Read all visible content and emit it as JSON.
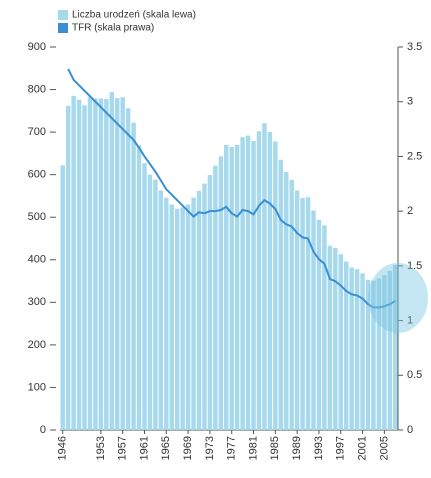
{
  "chart_data": {
    "type": "bar",
    "categories": [
      "1946",
      null,
      null,
      null,
      null,
      null,
      null,
      "1953",
      null,
      null,
      null,
      "1957",
      null,
      null,
      null,
      "1961",
      null,
      null,
      null,
      "1965",
      null,
      null,
      null,
      "1969",
      null,
      null,
      null,
      "1973",
      null,
      null,
      null,
      "1977",
      null,
      null,
      null,
      "1981",
      null,
      null,
      null,
      "1985",
      null,
      null,
      null,
      "1989",
      null,
      null,
      null,
      "1993",
      null,
      null,
      null,
      "1997",
      null,
      null,
      null,
      "2001",
      null,
      null,
      null,
      "2005",
      null,
      null
    ],
    "series": [
      {
        "name": "Liczba urodzeń (skala lewa)",
        "color": "#a6d9ec",
        "axis": "y",
        "values": [
          622,
          762,
          785,
          776,
          763,
          783,
          779,
          779,
          778,
          794,
          780,
          782,
          756,
          722,
          669,
          627,
          600,
          588,
          563,
          546,
          530,
          520,
          523,
          530,
          546,
          562,
          579,
          599,
          621,
          643,
          670,
          665,
          670,
          688,
          692,
          679,
          702,
          721,
          700,
          678,
          635,
          606,
          588,
          563,
          545,
          547,
          516,
          494,
          481,
          433,
          428,
          413,
          396,
          382,
          378,
          368,
          353,
          351,
          356,
          364,
          374,
          388
        ]
      },
      {
        "name": "TFR (skala prawa)",
        "color": "#3a8fd2",
        "axis": "y2",
        "type": "line",
        "values": [
          null,
          3.3,
          3.2,
          3.15,
          3.1,
          3.05,
          3.0,
          2.95,
          2.9,
          2.85,
          2.8,
          2.75,
          2.7,
          2.65,
          2.58,
          2.5,
          2.43,
          2.36,
          2.28,
          2.2,
          2.15,
          2.1,
          2.05,
          2.0,
          1.95,
          1.99,
          1.98,
          2.0,
          2.0,
          2.01,
          2.04,
          1.98,
          1.95,
          2.01,
          2.0,
          1.97,
          2.05,
          2.1,
          2.07,
          2.02,
          1.92,
          1.88,
          1.86,
          1.8,
          1.76,
          1.75,
          1.63,
          1.56,
          1.52,
          1.38,
          1.36,
          1.32,
          1.27,
          1.24,
          1.23,
          1.2,
          1.15,
          1.12,
          1.12,
          1.13,
          1.15,
          1.18
        ]
      }
    ],
    "ylim": [
      0,
      900
    ],
    "yticks": [
      0,
      100,
      200,
      300,
      400,
      500,
      600,
      700,
      800,
      900
    ],
    "y2lim": [
      0,
      3.5
    ],
    "y2ticks": [
      0,
      0.5,
      1,
      1.5,
      2,
      2.5,
      3,
      3.5
    ]
  }
}
